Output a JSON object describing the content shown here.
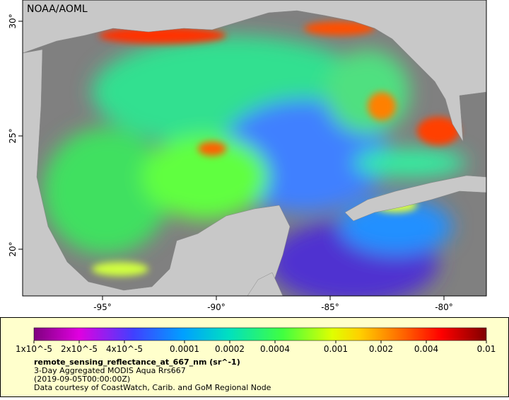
{
  "header": {
    "title": "NOAA/AOML"
  },
  "x_axis": {
    "labels": [
      "-95°",
      "-90°",
      "-85°",
      "-80°"
    ]
  },
  "y_axis": {
    "labels": [
      "30°",
      "25°",
      "20°"
    ]
  },
  "colorbar": {
    "labels": [
      "1x10^-5",
      "2x10^-5",
      "4x10^-5",
      "0.0001",
      "0.0002",
      "0.0004",
      "0.001",
      "0.002",
      "0.004",
      "0.01"
    ]
  },
  "caption": {
    "variable": "remote_sensing_reflectance_at_667_nm (sr^-1)",
    "lines": [
      "3-Day Aggregated MODIS Aqua Rrs667",
      "(2019-09-05T00:00:00Z)",
      "Data courtesy of CoastWatch, Carib. and GoM Regional Node"
    ]
  }
}
